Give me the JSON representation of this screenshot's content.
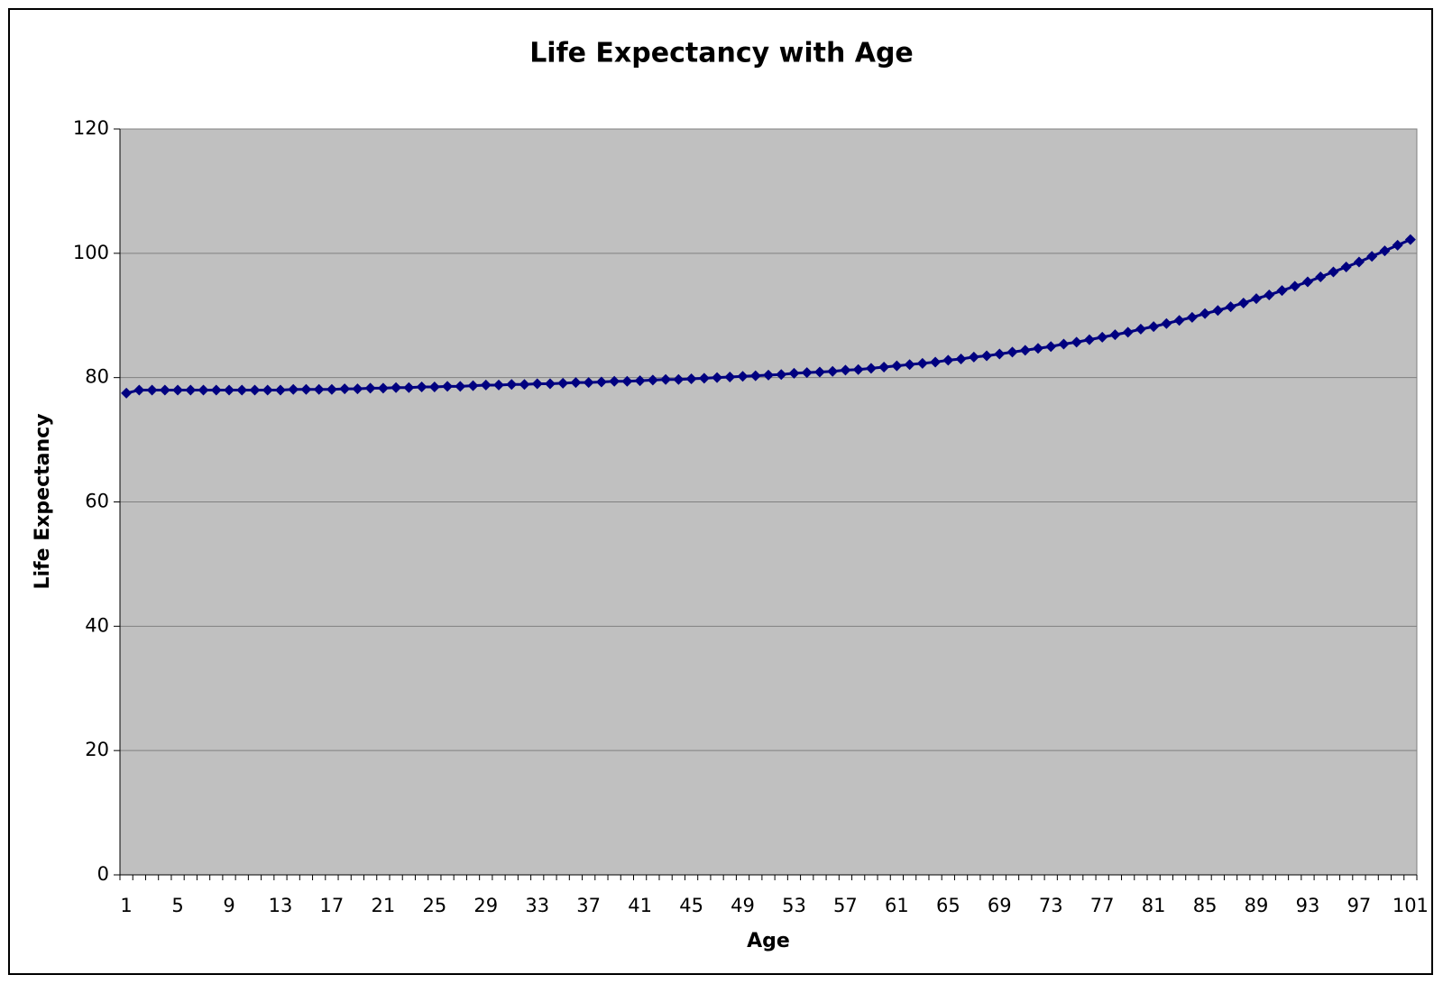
{
  "chart_data": {
    "type": "line",
    "title": "Life Expectancy with Age",
    "x_label": "Age",
    "y_label": "Life Expectancy",
    "categories": [
      "1",
      null,
      null,
      null,
      "5",
      null,
      null,
      null,
      "9",
      null,
      null,
      null,
      "13",
      null,
      null,
      null,
      "17",
      null,
      null,
      null,
      "21",
      null,
      null,
      null,
      "25",
      null,
      null,
      null,
      "29",
      null,
      null,
      null,
      "33",
      null,
      null,
      null,
      "37",
      null,
      null,
      null,
      "41",
      null,
      null,
      null,
      "45",
      null,
      null,
      null,
      "49",
      null,
      null,
      null,
      "53",
      null,
      null,
      null,
      "57",
      null,
      null,
      null,
      "61",
      null,
      null,
      null,
      "65",
      null,
      null,
      null,
      "69",
      null,
      null,
      null,
      "73",
      null,
      null,
      null,
      "77",
      null,
      null,
      null,
      "81",
      null,
      null,
      null,
      "85",
      null,
      null,
      null,
      "89",
      null,
      null,
      null,
      "93",
      null,
      null,
      null,
      "97",
      null,
      null,
      null,
      "101"
    ],
    "values": [
      77.5,
      78.0,
      78.0,
      78.0,
      78.0,
      78.0,
      78.0,
      78.0,
      78.0,
      78.0,
      78.0,
      78.0,
      78.0,
      78.1,
      78.1,
      78.1,
      78.1,
      78.2,
      78.2,
      78.3,
      78.3,
      78.4,
      78.4,
      78.5,
      78.5,
      78.6,
      78.6,
      78.7,
      78.8,
      78.8,
      78.9,
      78.9,
      79.0,
      79.0,
      79.1,
      79.2,
      79.2,
      79.3,
      79.4,
      79.4,
      79.5,
      79.6,
      79.7,
      79.7,
      79.8,
      79.9,
      80.0,
      80.1,
      80.2,
      80.3,
      80.4,
      80.5,
      80.7,
      80.8,
      80.9,
      81.0,
      81.2,
      81.3,
      81.5,
      81.7,
      81.9,
      82.1,
      82.3,
      82.5,
      82.8,
      83.0,
      83.3,
      83.5,
      83.8,
      84.1,
      84.4,
      84.7,
      85.0,
      85.4,
      85.7,
      86.1,
      86.5,
      86.9,
      87.3,
      87.8,
      88.2,
      88.7,
      89.2,
      89.7,
      90.3,
      90.8,
      91.4,
      92.0,
      92.7,
      93.3,
      94.0,
      94.7,
      95.4,
      96.2,
      97.0,
      97.8,
      98.6,
      99.5,
      100.4,
      101.3,
      102.2
    ],
    "color": "#000080",
    "ylim": [
      0,
      120
    ],
    "yticks": [
      0,
      20,
      40,
      60,
      80,
      100,
      120
    ],
    "grid": true
  }
}
